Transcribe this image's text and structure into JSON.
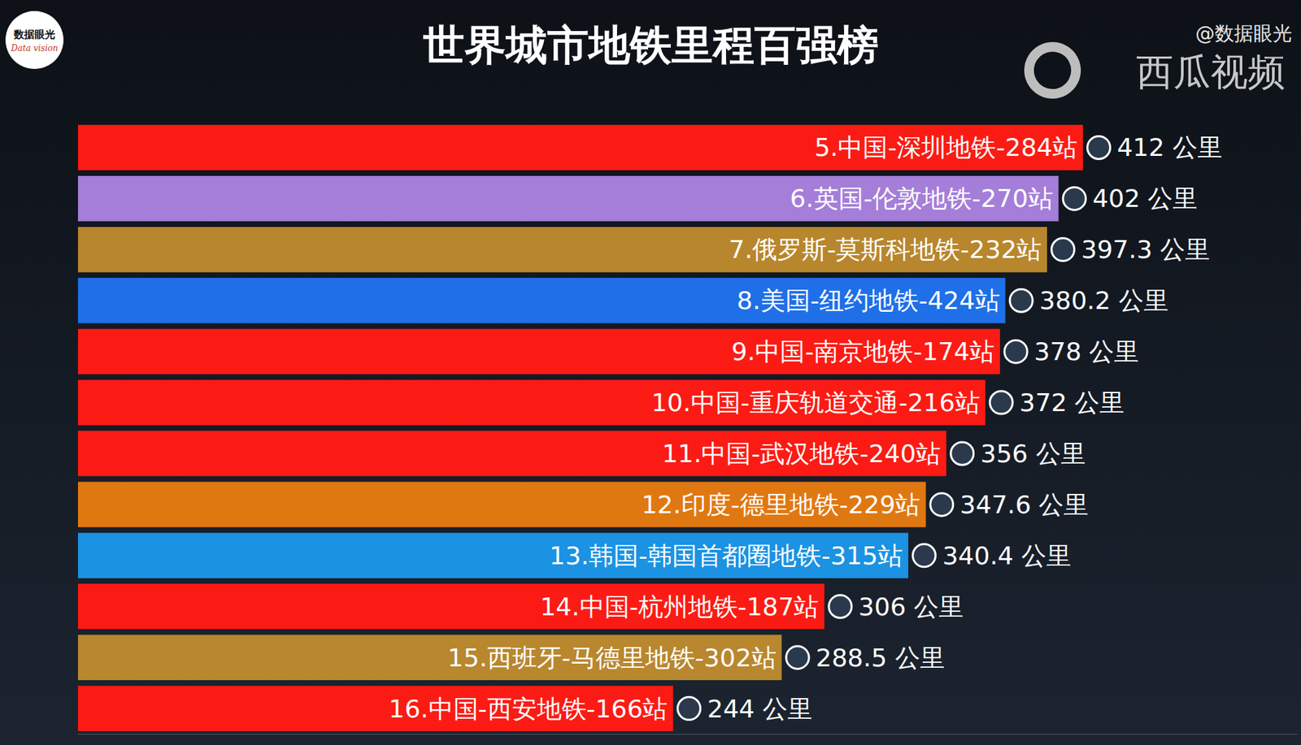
{
  "chart_data": {
    "type": "bar",
    "title": "世界城市地铁里程百强榜",
    "annotations": [
      "@数据眼光",
      "西瓜视频",
      "数据眼光",
      "Data vision"
    ],
    "orientation": "horizontal",
    "categories": [
      "5.中国-深圳地铁-284站",
      "6.英国-伦敦地铁-270站",
      "7.俄罗斯-莫斯科地铁-232站",
      "8.美国-纽约地铁-424站",
      "9.中国-南京地铁-174站",
      "10.中国-重庆轨道交通-216站",
      "11.中国-武汉地铁-240站",
      "12.印度-德里地铁-229站",
      "13.韩国-韩国首都圈地铁-315站",
      "14.中国-杭州地铁-187站",
      "15.西班牙-马德里地铁-302站",
      "16.中国-西安地铁-166站"
    ],
    "values": [
      412,
      402,
      397.3,
      380.2,
      378,
      372,
      356,
      347.6,
      340.4,
      306,
      288.5,
      244
    ],
    "value_labels": [
      "412 公里",
      "402 公里",
      "397.3 公里",
      "380.2 公里",
      "378 公里",
      "372 公里",
      "356 公里",
      "347.6 公里",
      "340.4 公里",
      "306 公里",
      "288.5 公里",
      "244 公里"
    ],
    "colors": [
      "#fb1b14",
      "#a47ed8",
      "#b8862c",
      "#1f6fe8",
      "#fb1b14",
      "#fb1b14",
      "#fb1b14",
      "#e07812",
      "#1b92e2",
      "#fb1b14",
      "#b8872e",
      "#fb1b14"
    ],
    "xlim": [
      0,
      500
    ],
    "data_labels": true,
    "tick_labels": false,
    "grid": false
  }
}
